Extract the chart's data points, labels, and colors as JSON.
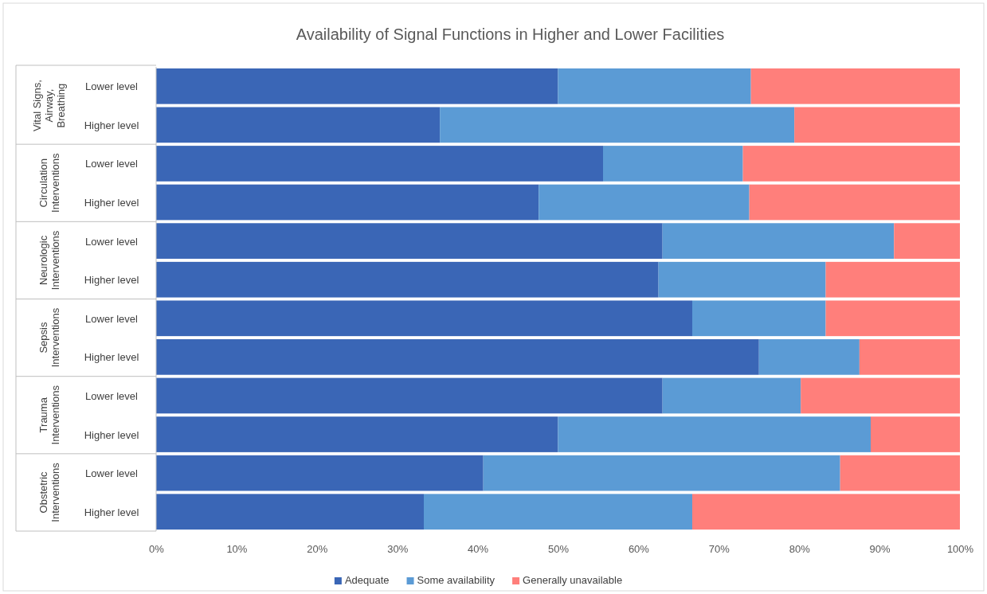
{
  "chart_data": {
    "type": "bar",
    "orientation": "horizontal",
    "stacked": true,
    "title": "Availability of Signal Functions in Higher and Lower Facilities",
    "categories": [
      "Lower level",
      "Higher level",
      "Lower level",
      "Higher level",
      "Lower level",
      "Higher level",
      "Lower level",
      "Higher level",
      "Lower level",
      "Higher level",
      "Lower level",
      "Higher level"
    ],
    "annotations": [
      "Vital Signs, Airway, Breathing",
      "Circulation Interventions",
      "Neurologic Interventions",
      "Sepsis Interventions",
      "Trauma Interventions",
      "Obstetric Interventions"
    ],
    "series": [
      {
        "name": "Adequate",
        "color": "#3a66b6",
        "values": [
          50,
          35.3,
          55.6,
          47.6,
          63,
          62.5,
          66.7,
          75,
          63,
          50,
          40.7,
          33.3
        ]
      },
      {
        "name": "Some availability",
        "color": "#5b9bd5",
        "values": [
          24,
          44.1,
          17.4,
          26.2,
          28.8,
          20.8,
          16.6,
          12.5,
          17.2,
          38.9,
          44.4,
          33.4
        ]
      },
      {
        "name": "Generally unavailable",
        "color": "#ff7f7b",
        "values": [
          26,
          20.6,
          27,
          26.2,
          8.2,
          16.7,
          16.7,
          12.5,
          19.8,
          11.1,
          14.9,
          33.3
        ]
      }
    ],
    "xlim": [
      0,
      100
    ],
    "xticks": [
      {
        "value": 0,
        "label": "0%"
      },
      {
        "value": 10,
        "label": "10%"
      },
      {
        "value": 20,
        "label": "20%"
      },
      {
        "value": 30,
        "label": "30%"
      },
      {
        "value": 40,
        "label": "40%"
      },
      {
        "value": 50,
        "label": "50%"
      },
      {
        "value": 60,
        "label": "60%"
      },
      {
        "value": 70,
        "label": "70%"
      },
      {
        "value": 80,
        "label": "80%"
      },
      {
        "value": 90,
        "label": "90%"
      },
      {
        "value": 100,
        "label": "100%"
      }
    ],
    "grid": false,
    "legend": "bottom"
  }
}
